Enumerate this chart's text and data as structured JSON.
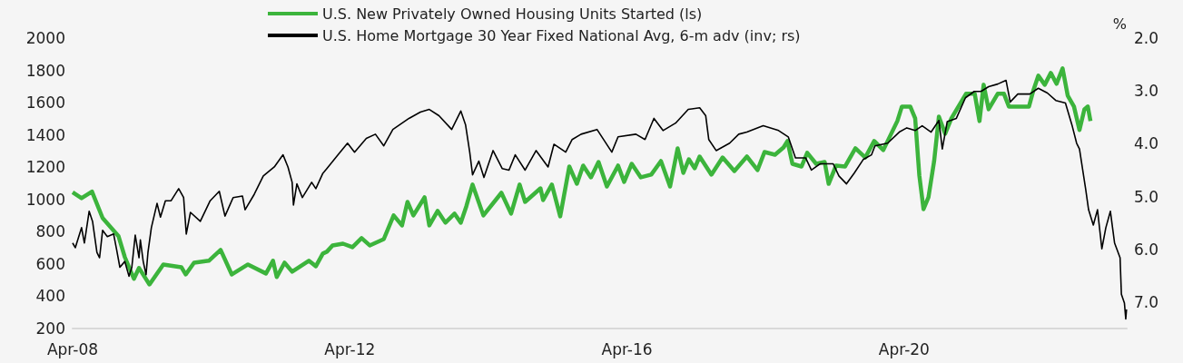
{
  "chart_data": {
    "type": "line",
    "y2label": "%",
    "legend": "top",
    "grid": false,
    "xlim": [
      "2008-04-01",
      "2023-06-18"
    ],
    "xticks": [
      {
        "value": "2008-04-01",
        "label": "Apr-08"
      },
      {
        "value": "2012-04-01",
        "label": "Apr-12"
      },
      {
        "value": "2016-04-01",
        "label": "Apr-16"
      },
      {
        "value": "2020-04-01",
        "label": "Apr-20"
      }
    ],
    "ylim": [
      200,
      2000
    ],
    "yticks": [
      200,
      400,
      600,
      800,
      1000,
      1200,
      1400,
      1600,
      1800,
      2000
    ],
    "y2lim": [
      7.5,
      2.0
    ],
    "y2ticks": [
      {
        "value": 2,
        "label": "2.0"
      },
      {
        "value": 3,
        "label": "3.0"
      },
      {
        "value": 4,
        "label": "4.0"
      },
      {
        "value": 5,
        "label": "5.0"
      },
      {
        "value": 6,
        "label": "6.0"
      },
      {
        "value": 7,
        "label": "7.0"
      }
    ],
    "series": [
      {
        "name": "U.S. New Privately Owned Housing Units Started (ls)",
        "color": "#3cb43c",
        "x": [
          "2008-04-01",
          "2008-05-18",
          "2008-07-12",
          "2008-09-06",
          "2008-11-29",
          "2009-01-01",
          "2009-02-18",
          "2009-03-17",
          "2009-05-11",
          "2009-07-23",
          "2009-10-26",
          "2009-11-18",
          "2010-01-01",
          "2010-03-20",
          "2010-05-21",
          "2010-07-19",
          "2010-10-12",
          "2011-01-15",
          "2011-02-21",
          "2011-03-13",
          "2011-04-23",
          "2011-06-02",
          "2011-08-29",
          "2011-10-05",
          "2011-11-11",
          "2011-12-02",
          "2012-01-01",
          "2012-02-25",
          "2012-04-15",
          "2012-06-02",
          "2012-07-15",
          "2012-09-27",
          "2012-11-18",
          "2013-01-01",
          "2013-01-30",
          "2013-03-02",
          "2013-04-30",
          "2013-05-25",
          "2013-07-08",
          "2013-08-18",
          "2013-10-05",
          "2013-11-07",
          "2013-12-06",
          "2014-01-08",
          "2014-03-06",
          "2014-06-09",
          "2014-07-30",
          "2014-09-13",
          "2014-10-12",
          "2015-01-01",
          "2015-01-15",
          "2015-03-02",
          "2015-04-15",
          "2015-06-02",
          "2015-07-12",
          "2015-08-14",
          "2015-09-24",
          "2015-11-03",
          "2015-12-17",
          "2016-02-14",
          "2016-03-17",
          "2016-04-26",
          "2016-06-13",
          "2016-08-07",
          "2016-09-27",
          "2016-11-14",
          "2016-12-24",
          "2017-01-23",
          "2017-02-21",
          "2017-03-24",
          "2017-04-19",
          "2017-06-20",
          "2017-08-18",
          "2017-10-19",
          "2017-12-24",
          "2018-02-18",
          "2018-03-27",
          "2018-05-21",
          "2018-07-05",
          "2018-07-26",
          "2018-08-21",
          "2018-10-08",
          "2018-11-07",
          "2018-12-24",
          "2019-02-07",
          "2019-02-28",
          "2019-04-08",
          "2019-05-25",
          "2019-07-19",
          "2019-09-09",
          "2019-10-26",
          "2019-12-13",
          "2020-02-25",
          "2020-03-20",
          "2020-05-03",
          "2020-05-29",
          "2020-06-13",
          "2020-06-20",
          "2020-07-12",
          "2020-08-07",
          "2020-09-06",
          "2020-10-01",
          "2020-11-03",
          "2020-12-06",
          "2021-02-21",
          "2021-04-08",
          "2021-05-03",
          "2021-05-25",
          "2021-06-20",
          "2021-08-07",
          "2021-09-09",
          "2021-10-05",
          "2021-12-02",
          "2022-01-19",
          "2022-02-10",
          "2022-03-09",
          "2022-04-12",
          "2022-05-14",
          "2022-06-13",
          "2022-07-15",
          "2022-08-11",
          "2022-09-13",
          "2022-10-12",
          "2022-11-07",
          "2022-11-25",
          "2022-12-09"
        ],
        "values": [
          1044,
          1008,
          1049,
          885,
          772,
          643,
          508,
          575,
          473,
          597,
          580,
          535,
          608,
          620,
          687,
          535,
          597,
          541,
          620,
          519,
          608,
          552,
          620,
          586,
          665,
          676,
          715,
          726,
          704,
          760,
          715,
          754,
          901,
          839,
          985,
          901,
          1013,
          839,
          929,
          856,
          912,
          856,
          957,
          1092,
          901,
          1041,
          912,
          1092,
          985,
          1069,
          996,
          1092,
          895,
          1204,
          1097,
          1210,
          1137,
          1232,
          1080,
          1210,
          1109,
          1221,
          1137,
          1154,
          1238,
          1080,
          1317,
          1165,
          1249,
          1193,
          1266,
          1154,
          1260,
          1176,
          1266,
          1182,
          1294,
          1277,
          1322,
          1362,
          1221,
          1204,
          1289,
          1221,
          1232,
          1097,
          1210,
          1204,
          1317,
          1260,
          1362,
          1306,
          1486,
          1576,
          1576,
          1503,
          1260,
          1148,
          940,
          1013,
          1238,
          1514,
          1407,
          1503,
          1655,
          1655,
          1486,
          1711,
          1559,
          1655,
          1655,
          1576,
          1576,
          1576,
          1672,
          1767,
          1711,
          1784,
          1717,
          1812,
          1644,
          1576,
          1430,
          1559,
          1576,
          1486
        ]
      },
      {
        "name": "U.S. Home Mortgage 30 Year Fixed National Avg, 6-m adv (inv; rs)",
        "color": "#000000",
        "axis": "y2",
        "x": [
          "2008-04-01",
          "2008-04-15",
          "2008-05-18",
          "2008-06-02",
          "2008-06-27",
          "2008-07-15",
          "2008-08-07",
          "2008-08-21",
          "2008-09-06",
          "2008-10-01",
          "2008-11-03",
          "2008-11-18",
          "2008-12-06",
          "2009-01-01",
          "2009-01-23",
          "2009-02-07",
          "2009-02-25",
          "2009-03-17",
          "2009-03-24",
          "2009-04-08",
          "2009-04-23",
          "2009-05-03",
          "2009-05-21",
          "2009-06-20",
          "2009-07-08",
          "2009-08-03",
          "2009-09-02",
          "2009-10-12",
          "2009-11-07",
          "2009-11-21",
          "2009-12-13",
          "2010-02-03",
          "2010-03-27",
          "2010-05-14",
          "2010-06-13",
          "2010-07-26",
          "2010-09-13",
          "2010-09-27",
          "2010-11-14",
          "2011-01-01",
          "2011-02-28",
          "2011-04-15",
          "2011-05-11",
          "2011-06-02",
          "2011-06-09",
          "2011-06-27",
          "2011-07-26",
          "2011-09-13",
          "2011-10-05",
          "2011-11-11",
          "2011-12-02",
          "2012-01-30",
          "2012-03-20",
          "2012-04-26",
          "2012-06-27",
          "2012-08-14",
          "2012-09-27",
          "2012-11-14",
          "2013-02-07",
          "2013-04-08",
          "2013-05-25",
          "2013-07-15",
          "2013-09-20",
          "2013-11-07",
          "2013-12-02",
          "2013-12-24",
          "2014-01-08",
          "2014-02-10",
          "2014-03-09",
          "2014-04-26",
          "2014-06-13",
          "2014-07-19",
          "2014-08-21",
          "2014-10-12",
          "2014-12-09",
          "2015-02-10",
          "2015-03-13",
          "2015-05-14",
          "2015-06-17",
          "2015-08-03",
          "2015-10-26",
          "2016-01-12",
          "2016-02-14",
          "2016-05-18",
          "2016-07-05",
          "2016-08-21",
          "2016-10-08",
          "2016-12-13",
          "2017-02-18",
          "2017-04-19",
          "2017-05-21",
          "2017-06-06",
          "2017-07-15",
          "2017-09-24",
          "2017-11-11",
          "2017-12-24",
          "2018-03-20",
          "2018-06-09",
          "2018-07-30",
          "2018-09-06",
          "2018-10-30",
          "2018-11-29",
          "2019-01-15",
          "2019-03-24",
          "2019-04-23",
          "2019-06-02",
          "2019-07-12",
          "2019-08-29",
          "2019-10-12",
          "2019-10-30",
          "2020-01-05",
          "2020-03-06",
          "2020-04-15",
          "2020-05-29",
          "2020-07-05",
          "2020-08-21",
          "2020-10-01",
          "2020-10-19",
          "2020-11-14",
          "2021-01-01",
          "2021-02-18",
          "2021-04-05",
          "2021-05-11",
          "2021-06-20",
          "2021-08-07",
          "2021-09-20",
          "2021-10-12",
          "2021-11-21",
          "2022-01-23",
          "2022-03-09",
          "2022-04-26",
          "2022-06-09",
          "2022-07-30",
          "2022-09-02",
          "2022-09-27",
          "2022-10-12",
          "2022-11-14",
          "2022-11-29",
          "2022-12-24",
          "2023-01-15",
          "2023-02-07",
          "2023-02-28",
          "2023-03-24",
          "2023-04-15",
          "2023-05-14",
          "2023-05-21",
          "2023-06-06",
          "2023-06-13",
          "2023-06-17"
        ],
        "values": [
          5.88,
          5.97,
          5.59,
          5.88,
          5.28,
          5.47,
          6.06,
          6.16,
          5.64,
          5.76,
          5.71,
          5.99,
          6.34,
          6.23,
          6.51,
          6.34,
          5.73,
          6.16,
          5.82,
          6.23,
          6.48,
          6.06,
          5.59,
          5.13,
          5.39,
          5.08,
          5.08,
          4.85,
          5.02,
          5.71,
          5.3,
          5.47,
          5.08,
          4.9,
          5.37,
          5.02,
          4.99,
          5.25,
          4.96,
          4.61,
          4.44,
          4.21,
          4.44,
          4.73,
          5.16,
          4.76,
          5.02,
          4.73,
          4.85,
          4.56,
          4.47,
          4.21,
          3.99,
          4.16,
          3.9,
          3.82,
          4.04,
          3.73,
          3.52,
          3.4,
          3.35,
          3.47,
          3.73,
          3.38,
          3.64,
          4.16,
          4.59,
          4.33,
          4.64,
          4.13,
          4.47,
          4.5,
          4.21,
          4.5,
          4.13,
          4.44,
          4.01,
          4.16,
          3.92,
          3.82,
          3.73,
          4.16,
          3.87,
          3.82,
          3.92,
          3.52,
          3.75,
          3.61,
          3.35,
          3.32,
          3.47,
          3.92,
          4.13,
          3.99,
          3.82,
          3.78,
          3.66,
          3.75,
          3.87,
          4.27,
          4.27,
          4.5,
          4.38,
          4.38,
          4.61,
          4.76,
          4.56,
          4.3,
          4.21,
          4.04,
          3.99,
          3.78,
          3.7,
          3.75,
          3.66,
          3.78,
          3.56,
          4.1,
          3.58,
          3.52,
          3.13,
          3.01,
          3.01,
          2.92,
          2.87,
          2.8,
          3.21,
          3.06,
          3.06,
          2.95,
          3.04,
          3.18,
          3.23,
          3.64,
          3.99,
          4.1,
          4.87,
          5.25,
          5.54,
          5.25,
          5.99,
          5.59,
          5.28,
          5.88,
          6.16,
          6.85,
          7.02,
          7.32,
          7.14
        ]
      }
    ]
  }
}
